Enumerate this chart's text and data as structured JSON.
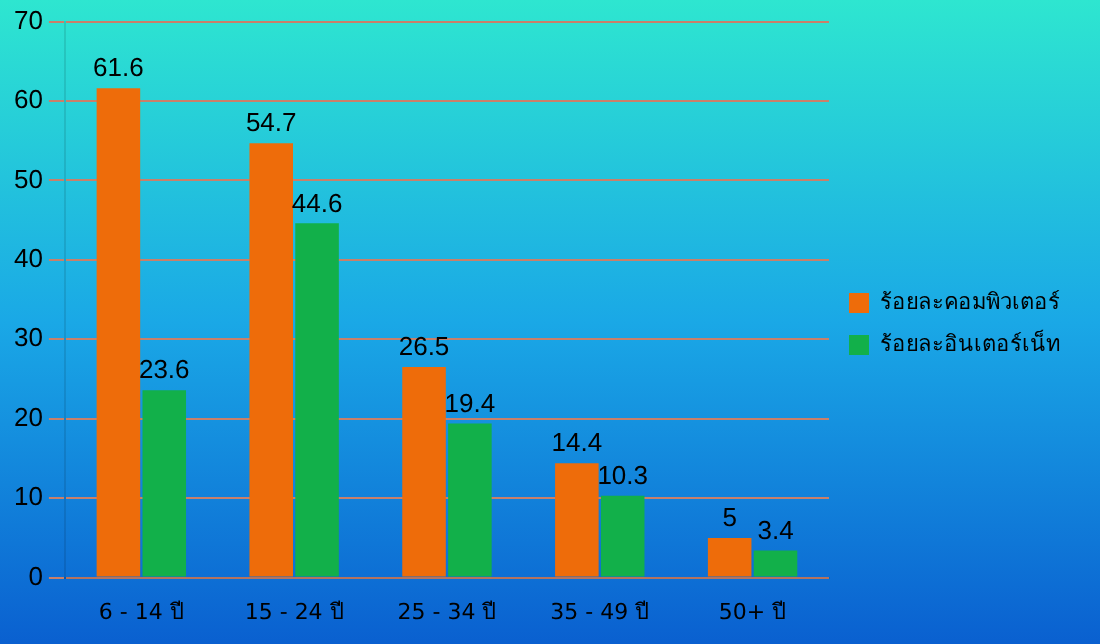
{
  "chart_data": {
    "type": "bar",
    "categories": [
      "6 - 14 ปี",
      "15 - 24 ปี",
      "25 - 34 ปี",
      "35 - 49 ปี",
      "50+ ปี"
    ],
    "series": [
      {
        "name": "ร้อยละคอมพิวเตอร์",
        "color": "#ee6c0a",
        "values": [
          61.6,
          54.7,
          26.5,
          14.4,
          5
        ]
      },
      {
        "name": "ร้อยละอินเตอร์เน็ท",
        "color": "#12b04a",
        "values": [
          23.6,
          44.6,
          19.4,
          10.3,
          3.4
        ]
      }
    ],
    "ylim": [
      0,
      70
    ],
    "yticks": [
      0,
      10,
      20,
      30,
      40,
      50,
      60,
      70
    ],
    "grid": "y",
    "legend": "right",
    "data_labels": true
  }
}
